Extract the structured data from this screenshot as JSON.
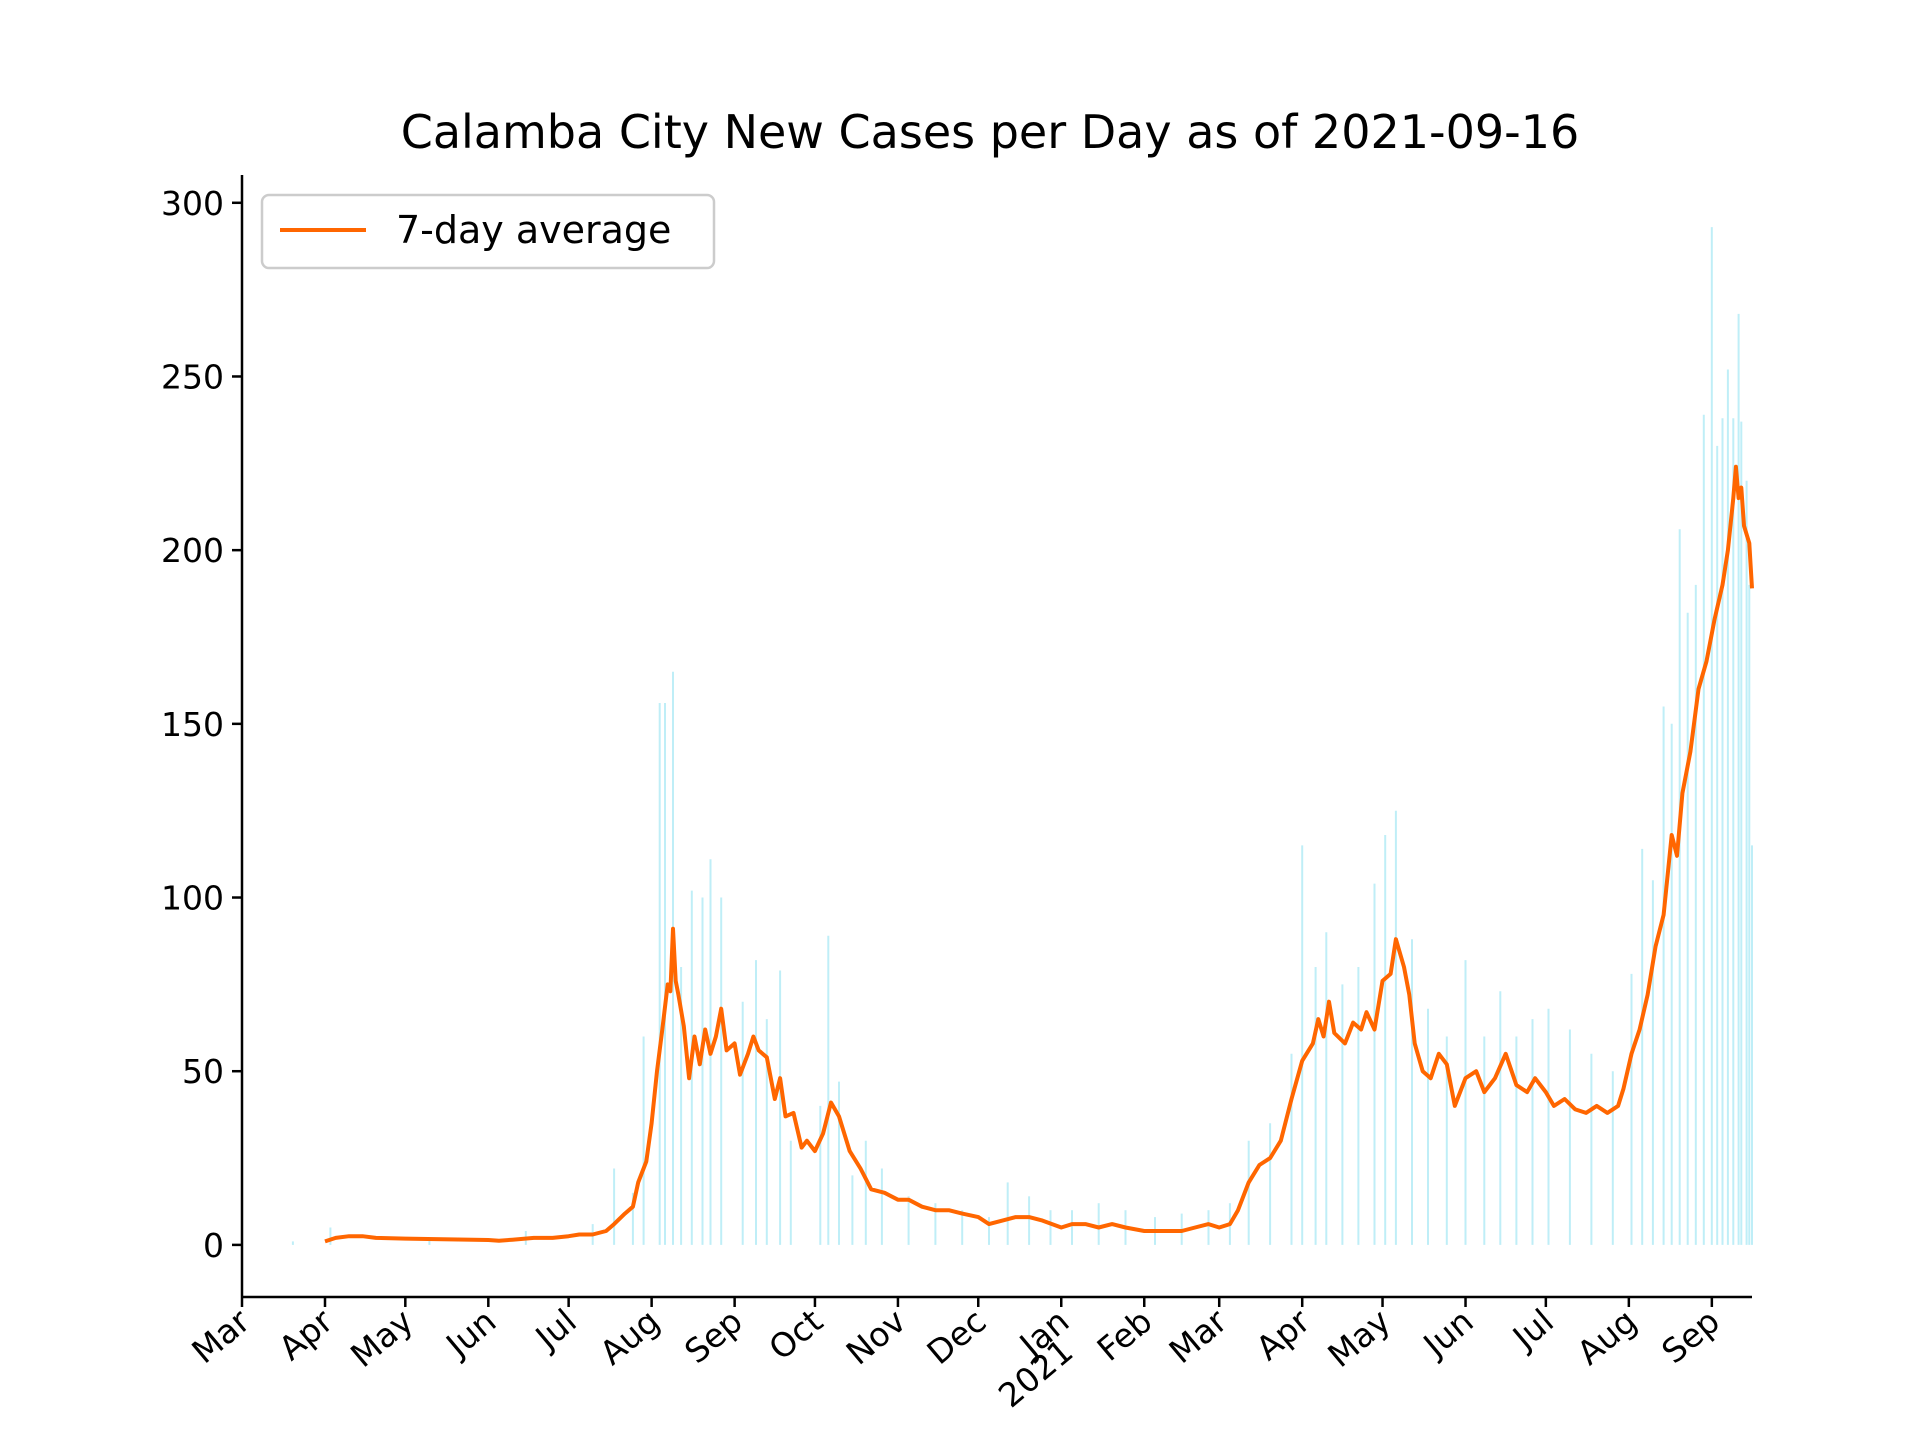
{
  "chart_data": {
    "type": "line",
    "title": "Calamba City New Cases per Day as of 2021-09-16",
    "xlabel": "",
    "ylabel": "",
    "x_range": [
      "2020-03-01",
      "2021-09-16"
    ],
    "ylim": [
      -15,
      308
    ],
    "yticks": [
      0,
      50,
      100,
      150,
      200,
      250,
      300
    ],
    "xticks": [
      {
        "date": "2020-03-01",
        "label": "Mar"
      },
      {
        "date": "2020-04-01",
        "label": "Apr"
      },
      {
        "date": "2020-05-01",
        "label": "May"
      },
      {
        "date": "2020-06-01",
        "label": "Jun"
      },
      {
        "date": "2020-07-01",
        "label": "Jul"
      },
      {
        "date": "2020-08-01",
        "label": "Aug"
      },
      {
        "date": "2020-09-01",
        "label": "Sep"
      },
      {
        "date": "2020-10-01",
        "label": "Oct"
      },
      {
        "date": "2020-11-01",
        "label": "Nov"
      },
      {
        "date": "2020-12-01",
        "label": "Dec"
      },
      {
        "date": "2021-01-01",
        "label": "Jan"
      },
      {
        "date": "2021-02-01",
        "label": "Feb"
      },
      {
        "date": "2021-03-01",
        "label": "Mar"
      },
      {
        "date": "2021-04-01",
        "label": "Apr"
      },
      {
        "date": "2021-05-01",
        "label": "May"
      },
      {
        "date": "2021-06-01",
        "label": "Jun"
      },
      {
        "date": "2021-07-01",
        "label": "Jul"
      },
      {
        "date": "2021-08-01",
        "label": "Aug"
      },
      {
        "date": "2021-09-01",
        "label": "Sep"
      }
    ],
    "year_label": {
      "date": "2021-01-01",
      "label": "2021"
    },
    "grid": false,
    "legend": {
      "position": "upper-left",
      "entries": [
        "7-day average"
      ]
    },
    "series": [
      {
        "name": "7-day average",
        "kind": "line",
        "color": "#ff6600",
        "points": [
          [
            "2020-04-01",
            1
          ],
          [
            "2020-04-05",
            2
          ],
          [
            "2020-04-10",
            2.5
          ],
          [
            "2020-04-15",
            2.5
          ],
          [
            "2020-04-20",
            2
          ],
          [
            "2020-05-01",
            1.8
          ],
          [
            "2020-05-15",
            1.6
          ],
          [
            "2020-06-01",
            1.4
          ],
          [
            "2020-06-05",
            1.2
          ],
          [
            "2020-06-10",
            1.5
          ],
          [
            "2020-06-18",
            2
          ],
          [
            "2020-06-25",
            2
          ],
          [
            "2020-07-01",
            2.5
          ],
          [
            "2020-07-05",
            3
          ],
          [
            "2020-07-10",
            3
          ],
          [
            "2020-07-15",
            4
          ],
          [
            "2020-07-18",
            6
          ],
          [
            "2020-07-22",
            9
          ],
          [
            "2020-07-25",
            11
          ],
          [
            "2020-07-27",
            18
          ],
          [
            "2020-07-30",
            24
          ],
          [
            "2020-08-01",
            35
          ],
          [
            "2020-08-03",
            50
          ],
          [
            "2020-08-05",
            62
          ],
          [
            "2020-08-07",
            75
          ],
          [
            "2020-08-08",
            73
          ],
          [
            "2020-08-09",
            91
          ],
          [
            "2020-08-10",
            76
          ],
          [
            "2020-08-11",
            72
          ],
          [
            "2020-08-13",
            63
          ],
          [
            "2020-08-15",
            48
          ],
          [
            "2020-08-17",
            60
          ],
          [
            "2020-08-19",
            52
          ],
          [
            "2020-08-21",
            62
          ],
          [
            "2020-08-23",
            55
          ],
          [
            "2020-08-25",
            60
          ],
          [
            "2020-08-27",
            68
          ],
          [
            "2020-08-29",
            56
          ],
          [
            "2020-09-01",
            58
          ],
          [
            "2020-09-03",
            49
          ],
          [
            "2020-09-06",
            55
          ],
          [
            "2020-09-08",
            60
          ],
          [
            "2020-09-10",
            56
          ],
          [
            "2020-09-13",
            54
          ],
          [
            "2020-09-16",
            42
          ],
          [
            "2020-09-18",
            48
          ],
          [
            "2020-09-20",
            37
          ],
          [
            "2020-09-23",
            38
          ],
          [
            "2020-09-26",
            28
          ],
          [
            "2020-09-28",
            30
          ],
          [
            "2020-10-01",
            27
          ],
          [
            "2020-10-04",
            32
          ],
          [
            "2020-10-07",
            41
          ],
          [
            "2020-10-10",
            37
          ],
          [
            "2020-10-14",
            27
          ],
          [
            "2020-10-18",
            22
          ],
          [
            "2020-10-22",
            16
          ],
          [
            "2020-10-27",
            15
          ],
          [
            "2020-11-01",
            13
          ],
          [
            "2020-11-05",
            13
          ],
          [
            "2020-11-10",
            11
          ],
          [
            "2020-11-15",
            10
          ],
          [
            "2020-11-20",
            10
          ],
          [
            "2020-11-25",
            9
          ],
          [
            "2020-12-01",
            8
          ],
          [
            "2020-12-05",
            6
          ],
          [
            "2020-12-10",
            7
          ],
          [
            "2020-12-15",
            8
          ],
          [
            "2020-12-20",
            8
          ],
          [
            "2020-12-25",
            7
          ],
          [
            "2021-01-01",
            5
          ],
          [
            "2021-01-05",
            6
          ],
          [
            "2021-01-10",
            6
          ],
          [
            "2021-01-15",
            5
          ],
          [
            "2021-01-20",
            6
          ],
          [
            "2021-01-25",
            5
          ],
          [
            "2021-02-01",
            4
          ],
          [
            "2021-02-05",
            4
          ],
          [
            "2021-02-10",
            4
          ],
          [
            "2021-02-15",
            4
          ],
          [
            "2021-02-20",
            5
          ],
          [
            "2021-02-25",
            6
          ],
          [
            "2021-03-01",
            5
          ],
          [
            "2021-03-05",
            6
          ],
          [
            "2021-03-08",
            10
          ],
          [
            "2021-03-12",
            18
          ],
          [
            "2021-03-16",
            23
          ],
          [
            "2021-03-20",
            25
          ],
          [
            "2021-03-24",
            30
          ],
          [
            "2021-03-28",
            42
          ],
          [
            "2021-04-01",
            53
          ],
          [
            "2021-04-05",
            58
          ],
          [
            "2021-04-07",
            65
          ],
          [
            "2021-04-09",
            60
          ],
          [
            "2021-04-11",
            70
          ],
          [
            "2021-04-13",
            61
          ],
          [
            "2021-04-17",
            58
          ],
          [
            "2021-04-20",
            64
          ],
          [
            "2021-04-23",
            62
          ],
          [
            "2021-04-25",
            67
          ],
          [
            "2021-04-28",
            62
          ],
          [
            "2021-05-01",
            76
          ],
          [
            "2021-05-04",
            78
          ],
          [
            "2021-05-06",
            88
          ],
          [
            "2021-05-09",
            80
          ],
          [
            "2021-05-11",
            72
          ],
          [
            "2021-05-13",
            58
          ],
          [
            "2021-05-16",
            50
          ],
          [
            "2021-05-19",
            48
          ],
          [
            "2021-05-22",
            55
          ],
          [
            "2021-05-25",
            52
          ],
          [
            "2021-05-28",
            40
          ],
          [
            "2021-06-01",
            48
          ],
          [
            "2021-06-05",
            50
          ],
          [
            "2021-06-08",
            44
          ],
          [
            "2021-06-12",
            48
          ],
          [
            "2021-06-16",
            55
          ],
          [
            "2021-06-20",
            46
          ],
          [
            "2021-06-24",
            44
          ],
          [
            "2021-06-27",
            48
          ],
          [
            "2021-07-01",
            44
          ],
          [
            "2021-07-04",
            40
          ],
          [
            "2021-07-08",
            42
          ],
          [
            "2021-07-12",
            39
          ],
          [
            "2021-07-16",
            38
          ],
          [
            "2021-07-20",
            40
          ],
          [
            "2021-07-24",
            38
          ],
          [
            "2021-07-28",
            40
          ],
          [
            "2021-07-30",
            45
          ],
          [
            "2021-08-02",
            55
          ],
          [
            "2021-08-05",
            62
          ],
          [
            "2021-08-08",
            72
          ],
          [
            "2021-08-11",
            86
          ],
          [
            "2021-08-14",
            95
          ],
          [
            "2021-08-17",
            118
          ],
          [
            "2021-08-19",
            112
          ],
          [
            "2021-08-21",
            130
          ],
          [
            "2021-08-24",
            142
          ],
          [
            "2021-08-27",
            160
          ],
          [
            "2021-08-30",
            168
          ],
          [
            "2021-09-02",
            180
          ],
          [
            "2021-09-05",
            190
          ],
          [
            "2021-09-07",
            200
          ],
          [
            "2021-09-09",
            215
          ],
          [
            "2021-09-10",
            224
          ],
          [
            "2021-09-11",
            215
          ],
          [
            "2021-09-12",
            218
          ],
          [
            "2021-09-13",
            207
          ],
          [
            "2021-09-15",
            202
          ],
          [
            "2021-09-16",
            189
          ]
        ]
      },
      {
        "name": "",
        "kind": "daily-bars",
        "color": "#bfeef7",
        "points": [
          [
            "2020-03-20",
            1
          ],
          [
            "2020-04-03",
            5
          ],
          [
            "2020-05-10",
            2
          ],
          [
            "2020-06-15",
            4
          ],
          [
            "2020-07-10",
            6
          ],
          [
            "2020-07-18",
            22
          ],
          [
            "2020-07-25",
            15
          ],
          [
            "2020-07-29",
            60
          ],
          [
            "2020-08-04",
            156
          ],
          [
            "2020-08-06",
            156
          ],
          [
            "2020-08-09",
            165
          ],
          [
            "2020-08-12",
            80
          ],
          [
            "2020-08-16",
            102
          ],
          [
            "2020-08-20",
            100
          ],
          [
            "2020-08-23",
            111
          ],
          [
            "2020-08-27",
            100
          ],
          [
            "2020-09-04",
            70
          ],
          [
            "2020-09-09",
            82
          ],
          [
            "2020-09-13",
            65
          ],
          [
            "2020-09-18",
            79
          ],
          [
            "2020-09-22",
            30
          ],
          [
            "2020-10-03",
            40
          ],
          [
            "2020-10-06",
            89
          ],
          [
            "2020-10-10",
            47
          ],
          [
            "2020-10-15",
            20
          ],
          [
            "2020-10-20",
            30
          ],
          [
            "2020-10-26",
            22
          ],
          [
            "2020-11-05",
            14
          ],
          [
            "2020-11-15",
            12
          ],
          [
            "2020-11-25",
            10
          ],
          [
            "2020-12-05",
            8
          ],
          [
            "2020-12-12",
            18
          ],
          [
            "2020-12-20",
            14
          ],
          [
            "2020-12-28",
            10
          ],
          [
            "2021-01-05",
            10
          ],
          [
            "2021-01-15",
            12
          ],
          [
            "2021-01-25",
            10
          ],
          [
            "2021-02-05",
            8
          ],
          [
            "2021-02-15",
            9
          ],
          [
            "2021-02-25",
            10
          ],
          [
            "2021-03-05",
            12
          ],
          [
            "2021-03-12",
            30
          ],
          [
            "2021-03-20",
            35
          ],
          [
            "2021-03-28",
            55
          ],
          [
            "2021-04-01",
            115
          ],
          [
            "2021-04-06",
            80
          ],
          [
            "2021-04-10",
            90
          ],
          [
            "2021-04-16",
            75
          ],
          [
            "2021-04-22",
            80
          ],
          [
            "2021-04-28",
            104
          ],
          [
            "2021-05-02",
            118
          ],
          [
            "2021-05-06",
            125
          ],
          [
            "2021-05-12",
            88
          ],
          [
            "2021-05-18",
            68
          ],
          [
            "2021-05-25",
            60
          ],
          [
            "2021-06-01",
            82
          ],
          [
            "2021-06-08",
            60
          ],
          [
            "2021-06-14",
            73
          ],
          [
            "2021-06-20",
            60
          ],
          [
            "2021-06-26",
            65
          ],
          [
            "2021-07-02",
            68
          ],
          [
            "2021-07-10",
            62
          ],
          [
            "2021-07-18",
            55
          ],
          [
            "2021-07-26",
            50
          ],
          [
            "2021-08-02",
            78
          ],
          [
            "2021-08-06",
            114
          ],
          [
            "2021-08-10",
            105
          ],
          [
            "2021-08-14",
            155
          ],
          [
            "2021-08-17",
            150
          ],
          [
            "2021-08-20",
            206
          ],
          [
            "2021-08-23",
            182
          ],
          [
            "2021-08-26",
            190
          ],
          [
            "2021-08-29",
            239
          ],
          [
            "2021-09-01",
            293
          ],
          [
            "2021-09-03",
            230
          ],
          [
            "2021-09-05",
            238
          ],
          [
            "2021-09-07",
            252
          ],
          [
            "2021-09-09",
            238
          ],
          [
            "2021-09-11",
            268
          ],
          [
            "2021-09-12",
            237
          ],
          [
            "2021-09-14",
            220
          ],
          [
            "2021-09-15",
            190
          ],
          [
            "2021-09-16",
            115
          ]
        ]
      }
    ]
  }
}
